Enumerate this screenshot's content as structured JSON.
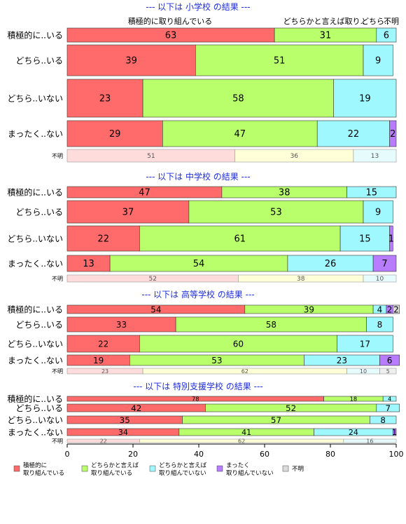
{
  "chart_data": {
    "type": "bar",
    "orientation": "horizontal",
    "stacked": true,
    "xlim": [
      0,
      100
    ],
    "x_ticks": [
      "0",
      "20",
      "40",
      "60",
      "80",
      "100"
    ],
    "category_names": [
      "積極的に..いる",
      "どちら..いる",
      "どちら..いない",
      "まったく..ない",
      "不明"
    ],
    "series": [
      {
        "key": "s1",
        "name": "積極的に\n取り組んでいる",
        "color": "#ff6b6b",
        "light_color": "#ffdcdc"
      },
      {
        "key": "s2",
        "name": "どちらかと言えば\n取り組んでいる",
        "color": "#b8ff6b",
        "light_color": "#ffffd8"
      },
      {
        "key": "s3",
        "name": "どちらかと言えば\n取り組んでいない",
        "color": "#a0f8ff",
        "light_color": "#e6fbfc"
      },
      {
        "key": "s4",
        "name": "まったく\n取り組んでいない",
        "color": "#b77cff",
        "light_color": "#ecdcff"
      },
      {
        "key": "s5",
        "name": "不明",
        "color": "#dcdcdc",
        "light_color": "#eeeeee"
      }
    ],
    "panels": [
      {
        "title": "--- 以下は 小学校 の結果 ---",
        "column_headers": [
          "積極的に取り組んでいる",
          "どちらかと言えば取り..",
          "どちら..",
          "不明"
        ],
        "rows": [
          {
            "values": [
              63,
              31,
              6,
              0,
              0
            ]
          },
          {
            "values": [
              39,
              51,
              9,
              0,
              0
            ]
          },
          {
            "values": [
              23,
              58,
              19,
              0,
              0
            ]
          },
          {
            "values": [
              29,
              47,
              22,
              2,
              0
            ]
          },
          {
            "values": [
              51,
              36,
              13,
              0,
              0
            ]
          }
        ]
      },
      {
        "title": "--- 以下は 中学校 の結果 ---",
        "rows": [
          {
            "values": [
              47,
              38,
              15,
              0,
              0
            ]
          },
          {
            "values": [
              37,
              53,
              9,
              0,
              0
            ]
          },
          {
            "values": [
              22,
              61,
              15,
              1,
              0
            ]
          },
          {
            "values": [
              13,
              54,
              26,
              7,
              0
            ]
          },
          {
            "values": [
              52,
              38,
              10,
              0,
              0
            ]
          }
        ]
      },
      {
        "title": "--- 以下は 高等学校 の結果 ---",
        "rows": [
          {
            "values": [
              54,
              39,
              4,
              2,
              2
            ]
          },
          {
            "values": [
              33,
              58,
              8,
              0,
              0
            ]
          },
          {
            "values": [
              22,
              60,
              17,
              0,
              0
            ]
          },
          {
            "values": [
              19,
              53,
              23,
              6,
              0
            ]
          },
          {
            "values": [
              23,
              62,
              10,
              0,
              5
            ]
          }
        ]
      },
      {
        "title": "--- 以下は 特別支援学校 の結果 ---",
        "rows": [
          {
            "values": [
              78,
              18,
              4,
              0,
              0
            ]
          },
          {
            "values": [
              42,
              52,
              7,
              0,
              0
            ]
          },
          {
            "values": [
              35,
              57,
              8,
              0,
              0
            ]
          },
          {
            "values": [
              34,
              41,
              24,
              1,
              0
            ]
          },
          {
            "values": [
              22,
              62,
              16,
              0,
              0
            ]
          }
        ]
      }
    ]
  }
}
